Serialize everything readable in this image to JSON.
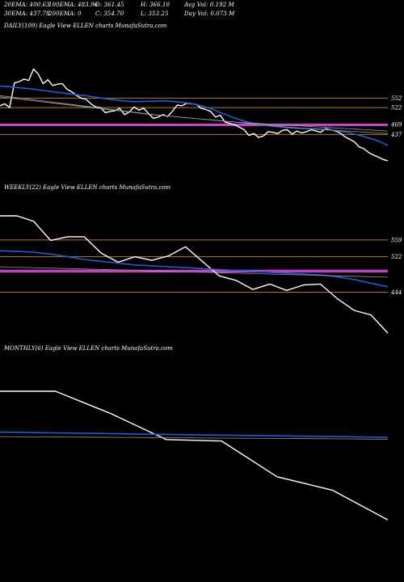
{
  "header": {
    "ema20": "20EMA: 400.63",
    "ema100": "100EMA: 483.96",
    "open": "O: 361.45",
    "high": "H: 366.10",
    "avg_vol": "Avg Vol: 0.192  M",
    "ema30": "30EMA: 437.78",
    "ema200": "200EMA: 0",
    "close": "C: 354.70",
    "low": "L: 353.25",
    "day_vol": "Day Vol: 0.073  M"
  },
  "chart_data": [
    {
      "type": "line",
      "title": "DAILY(109) Eagle  View  ELLEN  charts MunafaSutra.com",
      "levels": [
        "552",
        "522",
        "469",
        "437"
      ],
      "level_values": [
        552,
        522,
        469,
        437
      ],
      "ylim": [
        300,
        760
      ],
      "colors": {
        "price": "#ffffff",
        "ema": "#1a5fd8",
        "level": "#b87a1e",
        "band": "#e040e0",
        "ma": "#999999"
      },
      "series": [
        {
          "values": [
            528,
            534,
            522,
            600,
            604,
            612,
            608,
            644,
            628,
            598,
            610,
            592,
            596,
            598,
            580,
            572,
            560,
            552,
            548,
            534,
            524,
            522,
            506,
            510,
            512,
            520,
            500,
            508,
            524,
            514,
            520,
            504,
            488,
            492,
            500,
            494,
            510,
            530,
            528,
            536,
            534,
            532,
            520,
            516,
            510,
            492,
            498,
            476,
            472,
            468,
            460,
            452,
            434,
            440,
            428,
            432,
            446,
            444,
            440,
            450,
            452,
            438,
            448,
            442,
            446,
            452,
            448,
            444,
            456,
            452,
            448,
            442,
            430,
            422,
            414,
            398,
            392,
            380,
            372,
            366,
            358,
            354
          ]
        },
        {
          "values": [
            590,
            589,
            587,
            585,
            583,
            581,
            578,
            576,
            573,
            570,
            568,
            565,
            563,
            561,
            558,
            555,
            552,
            549,
            547,
            544,
            542,
            541,
            541,
            542,
            542,
            543,
            543,
            542,
            540,
            538,
            535,
            531,
            526,
            520,
            512,
            504,
            496,
            488,
            482,
            476,
            472,
            468,
            465,
            463,
            461,
            459,
            458,
            457,
            456,
            455,
            454,
            453,
            451,
            449,
            446,
            442,
            437,
            432,
            426,
            420,
            412,
            402
          ]
        },
        {
          "values": [
            560,
            556,
            552,
            548,
            544,
            540,
            536,
            532,
            528,
            524,
            520,
            516,
            512,
            508,
            504,
            500,
            497,
            494,
            491,
            488,
            485,
            482,
            479,
            476,
            473,
            470,
            467,
            464,
            461,
            458,
            456,
            454,
            452,
            450,
            448,
            446,
            444,
            442,
            440
          ]
        },
        {
          "values": [
            556,
            552,
            548,
            544,
            540,
            536,
            532,
            528,
            524,
            520,
            516,
            512,
            508,
            504,
            500,
            497,
            494,
            491,
            488,
            485,
            482,
            479,
            476,
            474,
            472,
            470,
            468,
            466,
            464,
            462,
            460,
            458,
            456,
            454,
            452,
            450,
            448
          ]
        }
      ]
    },
    {
      "type": "line",
      "title": "WEEKLY(22) Eagle  View  ELLEN  charts MunafaSutra.com",
      "levels": [
        "559",
        "522",
        "444"
      ],
      "level_values": [
        559,
        522,
        444
      ],
      "ylim": [
        340,
        660
      ],
      "colors": {
        "price": "#ffffff",
        "ema": "#1a5fd8",
        "level": "#b87a1e",
        "band": "#e040e0",
        "ma": "#999999"
      },
      "series": [
        {
          "values": [
            612,
            612,
            600,
            558,
            566,
            566,
            530,
            510,
            522,
            514,
            524,
            544,
            512,
            480,
            470,
            450,
            462,
            448,
            460,
            462,
            430,
            404,
            394,
            354
          ]
        },
        {
          "values": [
            535,
            534,
            532,
            528,
            522,
            516,
            512,
            508,
            504,
            502,
            500,
            498,
            496,
            494,
            492,
            490,
            488,
            486,
            484,
            482,
            478,
            472,
            464,
            456
          ]
        },
        {
          "values": [
            500,
            499,
            498,
            497,
            496,
            495,
            494,
            493,
            492,
            491,
            490,
            489,
            488,
            487,
            486,
            485,
            484,
            483,
            482,
            481,
            480,
            479,
            478,
            477
          ]
        }
      ]
    },
    {
      "type": "line",
      "title": "MONTHLY(6) Eagle  View  ELLEN  charts MunafaSutra.com",
      "levels": [],
      "level_values": [],
      "ylim": [
        300,
        800
      ],
      "colors": {
        "price": "#ffffff",
        "ema": "#1a5fd8",
        "ma": "#999999"
      },
      "series": [
        {
          "values": [
            700,
            700,
            640,
            570,
            566,
            470,
            434,
            354
          ]
        },
        {
          "values": [
            590,
            588,
            586,
            584,
            582,
            580,
            578,
            576
          ]
        },
        {
          "values": [
            578,
            577,
            576,
            575,
            574,
            573,
            572,
            571
          ]
        }
      ]
    }
  ]
}
